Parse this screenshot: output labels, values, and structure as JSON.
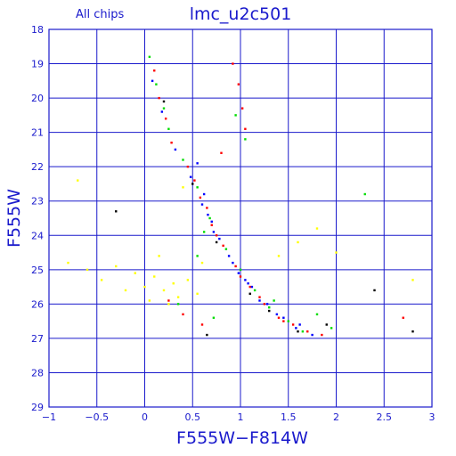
{
  "header": {
    "subtitle": "All chips",
    "title": "lmc_u2c501"
  },
  "chart_data": {
    "type": "scatter",
    "title": "lmc_u2c501",
    "subtitle": "All chips",
    "xlabel": "F555W−F814W",
    "ylabel": "F555W",
    "xlim": [
      -1,
      3
    ],
    "ylim": [
      29,
      18
    ],
    "y_inverted": true,
    "x_ticks": [
      "−1",
      "−0.5",
      "0",
      "0.5",
      "1",
      "1.5",
      "2",
      "2.5",
      "3"
    ],
    "y_ticks": [
      "18",
      "19",
      "20",
      "21",
      "22",
      "23",
      "24",
      "25",
      "26",
      "27",
      "28",
      "29"
    ],
    "grid": true,
    "colors": {
      "axis": "#1a1acc",
      "grid": "#1a1acc",
      "chip1": "#ff0000",
      "chip2": "#00dd00",
      "chip3": "#0000ff",
      "chip4": "#000000",
      "field": "#ffff00"
    },
    "series": [
      {
        "color": "#ff0000",
        "points": [
          [
            0.1,
            19.2
          ],
          [
            0.15,
            20.0
          ],
          [
            0.28,
            21.3
          ],
          [
            0.45,
            22.0
          ],
          [
            0.58,
            22.9
          ],
          [
            0.7,
            23.7
          ],
          [
            0.82,
            24.3
          ],
          [
            0.95,
            24.9
          ],
          [
            1.1,
            25.5
          ],
          [
            1.25,
            26.0
          ],
          [
            1.4,
            26.4
          ],
          [
            1.55,
            26.6
          ],
          [
            1.7,
            26.8
          ],
          [
            0.92,
            19.0
          ],
          [
            0.98,
            19.6
          ],
          [
            1.02,
            20.3
          ],
          [
            1.05,
            20.9
          ],
          [
            0.8,
            21.6
          ],
          [
            0.65,
            23.2
          ],
          [
            0.75,
            24.0
          ],
          [
            1.0,
            25.2
          ],
          [
            1.2,
            25.8
          ],
          [
            1.45,
            26.5
          ],
          [
            0.4,
            26.3
          ],
          [
            0.25,
            25.9
          ],
          [
            2.7,
            26.4
          ],
          [
            0.6,
            26.6
          ],
          [
            1.85,
            26.9
          ],
          [
            0.22,
            20.6
          ],
          [
            0.52,
            22.4
          ]
        ]
      },
      {
        "color": "#00dd00",
        "points": [
          [
            0.05,
            18.8
          ],
          [
            0.12,
            19.6
          ],
          [
            0.25,
            20.9
          ],
          [
            0.4,
            21.8
          ],
          [
            0.55,
            22.6
          ],
          [
            0.68,
            23.5
          ],
          [
            0.85,
            24.4
          ],
          [
            1.0,
            25.0
          ],
          [
            1.15,
            25.6
          ],
          [
            1.3,
            26.1
          ],
          [
            1.5,
            26.5
          ],
          [
            1.65,
            26.8
          ],
          [
            1.05,
            21.2
          ],
          [
            0.95,
            20.5
          ],
          [
            0.55,
            24.6
          ],
          [
            0.35,
            26.0
          ],
          [
            0.72,
            26.4
          ],
          [
            2.3,
            22.8
          ],
          [
            1.8,
            26.3
          ],
          [
            1.95,
            26.7
          ],
          [
            0.62,
            23.9
          ],
          [
            1.35,
            25.9
          ],
          [
            0.2,
            20.3
          ]
        ]
      },
      {
        "color": "#0000ff",
        "points": [
          [
            0.08,
            19.5
          ],
          [
            0.18,
            20.4
          ],
          [
            0.32,
            21.5
          ],
          [
            0.48,
            22.3
          ],
          [
            0.6,
            23.1
          ],
          [
            0.72,
            23.9
          ],
          [
            0.88,
            24.6
          ],
          [
            1.05,
            25.3
          ],
          [
            1.2,
            25.9
          ],
          [
            1.38,
            26.3
          ],
          [
            1.58,
            26.7
          ],
          [
            1.75,
            26.9
          ],
          [
            0.62,
            22.8
          ],
          [
            0.66,
            23.4
          ],
          [
            0.78,
            24.1
          ],
          [
            0.92,
            24.8
          ],
          [
            1.12,
            25.5
          ],
          [
            1.28,
            26.0
          ],
          [
            1.45,
            26.4
          ],
          [
            0.55,
            21.9
          ],
          [
            0.98,
            25.1
          ],
          [
            1.62,
            26.6
          ],
          [
            0.7,
            23.6
          ],
          [
            1.08,
            25.4
          ]
        ]
      },
      {
        "color": "#000000",
        "points": [
          [
            0.2,
            20.1
          ],
          [
            0.5,
            22.5
          ],
          [
            0.75,
            24.2
          ],
          [
            1.1,
            25.7
          ],
          [
            1.6,
            26.8
          ],
          [
            2.4,
            25.6
          ],
          [
            2.8,
            26.8
          ],
          [
            -0.3,
            23.3
          ],
          [
            1.9,
            26.6
          ],
          [
            0.65,
            26.9
          ],
          [
            1.3,
            26.2
          ]
        ]
      },
      {
        "color": "#ffff00",
        "points": [
          [
            -0.8,
            24.8
          ],
          [
            -0.6,
            25.0
          ],
          [
            -0.45,
            25.3
          ],
          [
            -0.3,
            24.9
          ],
          [
            -0.1,
            25.1
          ],
          [
            0.0,
            25.5
          ],
          [
            0.1,
            25.2
          ],
          [
            0.2,
            25.6
          ],
          [
            0.3,
            25.4
          ],
          [
            0.35,
            25.8
          ],
          [
            0.45,
            25.3
          ],
          [
            0.05,
            25.9
          ],
          [
            0.25,
            26.0
          ],
          [
            1.6,
            24.2
          ],
          [
            1.8,
            23.8
          ],
          [
            2.0,
            24.5
          ],
          [
            0.4,
            22.6
          ],
          [
            -0.7,
            22.4
          ],
          [
            0.15,
            24.6
          ],
          [
            0.55,
            25.7
          ],
          [
            2.8,
            25.3
          ],
          [
            1.4,
            24.6
          ],
          [
            0.6,
            24.8
          ],
          [
            -0.2,
            25.6
          ]
        ]
      }
    ]
  }
}
